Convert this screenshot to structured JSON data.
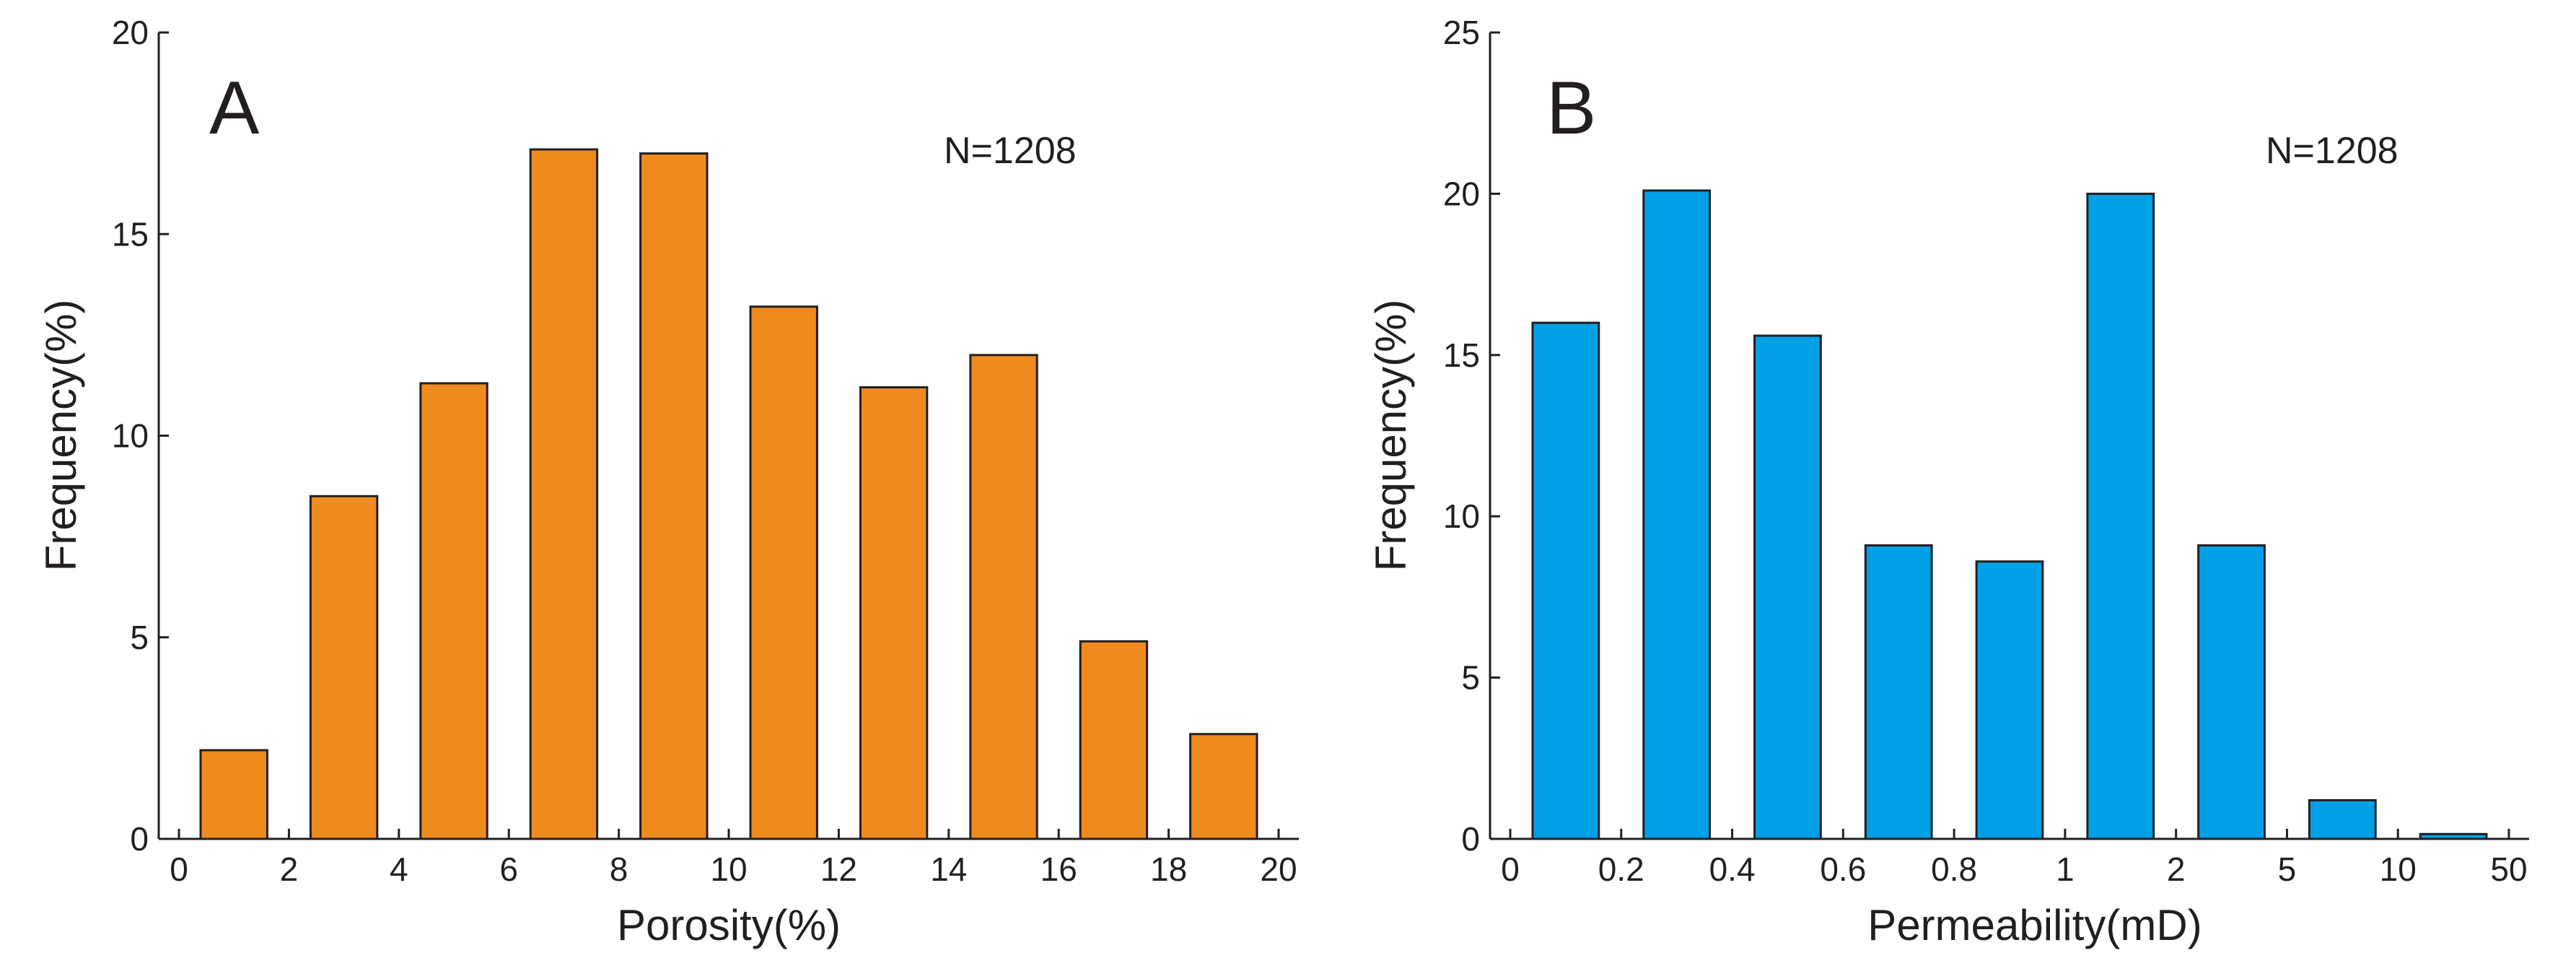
{
  "chart_data": [
    {
      "type": "bar",
      "panel_label": "A",
      "annotation": "N=1208",
      "xlabel": "Porosity(%)",
      "ylabel": "Frequency(%)",
      "ylim": [
        0,
        20
      ],
      "y_ticks": [
        "0",
        "5",
        "10",
        "15",
        "20"
      ],
      "x_ticks": [
        "0",
        "2",
        "4",
        "6",
        "8",
        "10",
        "12",
        "14",
        "16",
        "18",
        "20"
      ],
      "categories": [
        "0-2",
        "2-4",
        "4-6",
        "6-8",
        "8-10",
        "10-12",
        "12-14",
        "14-16",
        "16-18",
        "18-20"
      ],
      "values": [
        2.2,
        8.5,
        11.3,
        17.1,
        17.0,
        13.2,
        11.2,
        12.0,
        4.9,
        2.6
      ],
      "color": "#ef8a1e"
    },
    {
      "type": "bar",
      "panel_label": "B",
      "annotation": "N=1208",
      "xlabel": "Permeability(mD)",
      "ylabel": "Frequency(%)",
      "ylim": [
        0,
        25
      ],
      "y_ticks": [
        "0",
        "5",
        "10",
        "15",
        "20",
        "25"
      ],
      "x_ticks": [
        "0",
        "0.2",
        "0.4",
        "0.6",
        "0.8",
        "1",
        "2",
        "5",
        "10",
        "50"
      ],
      "categories": [
        "0-0.2",
        "0.2-0.4",
        "0.4-0.6",
        "0.6-0.8",
        "0.8-1",
        "1-2",
        "2-5",
        "5-10",
        "10-50"
      ],
      "values": [
        16.0,
        20.1,
        15.6,
        9.1,
        8.6,
        20.0,
        9.1,
        1.2,
        0.15
      ],
      "color": "#00a0e6"
    }
  ]
}
